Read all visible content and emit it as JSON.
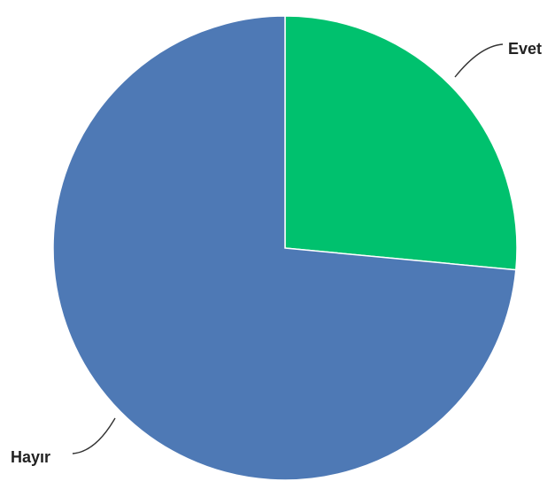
{
  "chart_data": {
    "type": "pie",
    "title": "",
    "categories": [
      "Evet",
      "Hayır"
    ],
    "values": [
      26.5,
      73.5
    ],
    "colors": [
      "#00c16e",
      "#4e79b5"
    ],
    "start_angle_deg": 0,
    "direction": "clockwise",
    "legend": "none",
    "label_style": "outside-leader-lines"
  }
}
